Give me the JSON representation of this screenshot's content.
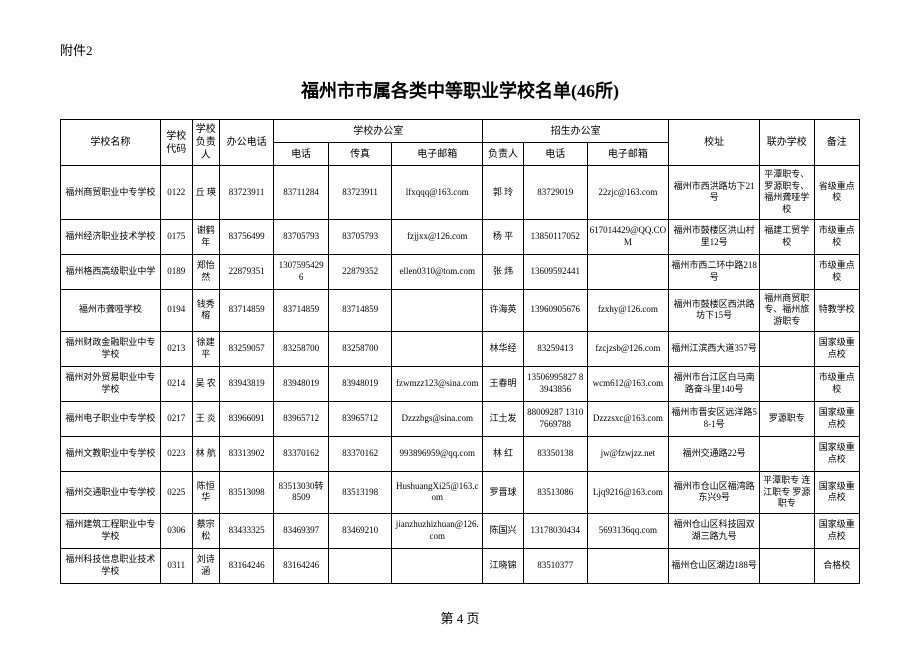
{
  "attachment": "附件2",
  "title": "福州市市属各类中等职业学校名单(46所)",
  "footer": "第 4 页",
  "headers": {
    "name": "学校名称",
    "code": "学校代码",
    "head": "学校负责人",
    "office_phone": "办公电话",
    "school_office": "学校办公室",
    "phone": "电话",
    "fax": "传真",
    "email": "电子邮箱",
    "admissions": "招生办公室",
    "z_person": "负责人",
    "z_phone": "电话",
    "z_email": "电子邮箱",
    "address": "校址",
    "liban": "联办学校",
    "note": "备注"
  },
  "rows": [
    {
      "name": "福州商贸职业中专学校",
      "code": "0122",
      "head": "丘 瑛",
      "office": "83723911",
      "phone": "83711284",
      "fax": "83723911",
      "email": "lfxqqq@163.com",
      "zp": "郭 玲",
      "zphone": "83729019",
      "zemail": "22zjc@163.com",
      "addr": "福州市西洪路坊下21号",
      "liban": "平潭职专、罗源职专、福州聋哑学校",
      "note": "省级重点校"
    },
    {
      "name": "福州经济职业技术学校",
      "code": "0175",
      "head": "谢鹤年",
      "office": "83756499",
      "phone": "83705793",
      "fax": "83705793",
      "email": "fzjjxx@126.com",
      "zp": "杨 平",
      "zphone": "13850117052",
      "zemail": "617014429@QQ.COM",
      "addr": "福州市鼓楼区洪山村里12号",
      "liban": "福建工贸学校",
      "note": "市级重点校"
    },
    {
      "name": "福州格西高级职业中学",
      "code": "0189",
      "head": "郑怡然",
      "office": "22879351",
      "phone": "13075954296",
      "fax": "22879352",
      "email": "ellen0310@tom.com",
      "zp": "张 炜",
      "zphone": "13609592441",
      "zemail": "",
      "addr": "福州市西二环中路218号",
      "liban": "",
      "note": "市级重点校"
    },
    {
      "name": "福州市聋哑学校",
      "code": "0194",
      "head": "钱秀榕",
      "office": "83714859",
      "phone": "83714859",
      "fax": "83714859",
      "email": "",
      "zp": "许海英",
      "zphone": "13960905676",
      "zemail": "fzxhy@126.com",
      "addr": "福州市鼓楼区西洪路坊下15号",
      "liban": "福州商贸职专、福州旅游职专",
      "note": "特教学校"
    },
    {
      "name": "福州财政金融职业中专学校",
      "code": "0213",
      "head": "徐建平",
      "office": "83259057",
      "phone": "83258700",
      "fax": "83258700",
      "email": "",
      "zp": "林华经",
      "zphone": "83259413",
      "zemail": "fzcjzsb@126.com",
      "addr": "福州江滨西大道357号",
      "liban": "",
      "note": "国家级重点校"
    },
    {
      "name": "福州对外贸易职业中专学校",
      "code": "0214",
      "head": "吴 农",
      "office": "83943819",
      "phone": "83948019",
      "fax": "83948019",
      "email": "fzwmzz123@sina.com",
      "zp": "王春明",
      "zphone": "13506995827 83943856",
      "zemail": "wcm612@163.com",
      "addr": "福州市台江区白马南路奋斗里140号",
      "liban": "",
      "note": "市级重点校"
    },
    {
      "name": "福州电子职业中专学校",
      "code": "0217",
      "head": "王 炎",
      "office": "83966091",
      "phone": "83965712",
      "fax": "83965712",
      "email": "Dzzzbgs@sina.com",
      "zp": "江土发",
      "zphone": "88009287 13107669788",
      "zemail": "Dzzzsxc@163.com",
      "addr": "福州市晋安区远洋路58-1号",
      "liban": "罗源职专",
      "note": "国家级重点校"
    },
    {
      "name": "福州文教职业中专学校",
      "code": "0223",
      "head": "林 航",
      "office": "83313902",
      "phone": "83370162",
      "fax": "83370162",
      "email": "993896959@qq.com",
      "zp": "林 红",
      "zphone": "83350138",
      "zemail": "jw@fzwjzz.net",
      "addr": "福州交通路22号",
      "liban": "",
      "note": "国家级重点校"
    },
    {
      "name": "福州交通职业中专学校",
      "code": "0225",
      "head": "陈恒华",
      "office": "83513098",
      "phone": "83513030转8509",
      "fax": "83513198",
      "email": "HushuangXi25@163.com",
      "zp": "罗晋球",
      "zphone": "83513086",
      "zemail": "Ljq9216@163.com",
      "addr": "福州市仓山区福湾路东兴9号",
      "liban": "平潭职专 连江职专 罗源职专",
      "note": "国家级重点校"
    },
    {
      "name": "福州建筑工程职业中专学校",
      "code": "0306",
      "head": "蔡宗松",
      "office": "83433325",
      "phone": "83469397",
      "fax": "83469210",
      "email": "jianzhuzhizhuan@126.com",
      "zp": "陈国兴",
      "zphone": "13178030434",
      "zemail": "5693136qq.com",
      "addr": "福州仓山区科技园双湖三路九号",
      "liban": "",
      "note": "国家级重点校"
    },
    {
      "name": "福州科技信息职业技术学校",
      "code": "0311",
      "head": "刘诗涵",
      "office": "83164246",
      "phone": "83164246",
      "fax": "",
      "email": "",
      "zp": "江晓锦",
      "zphone": "83510377",
      "zemail": "",
      "addr": "福州仓山区湖边188号",
      "liban": "",
      "note": "合格校"
    }
  ]
}
